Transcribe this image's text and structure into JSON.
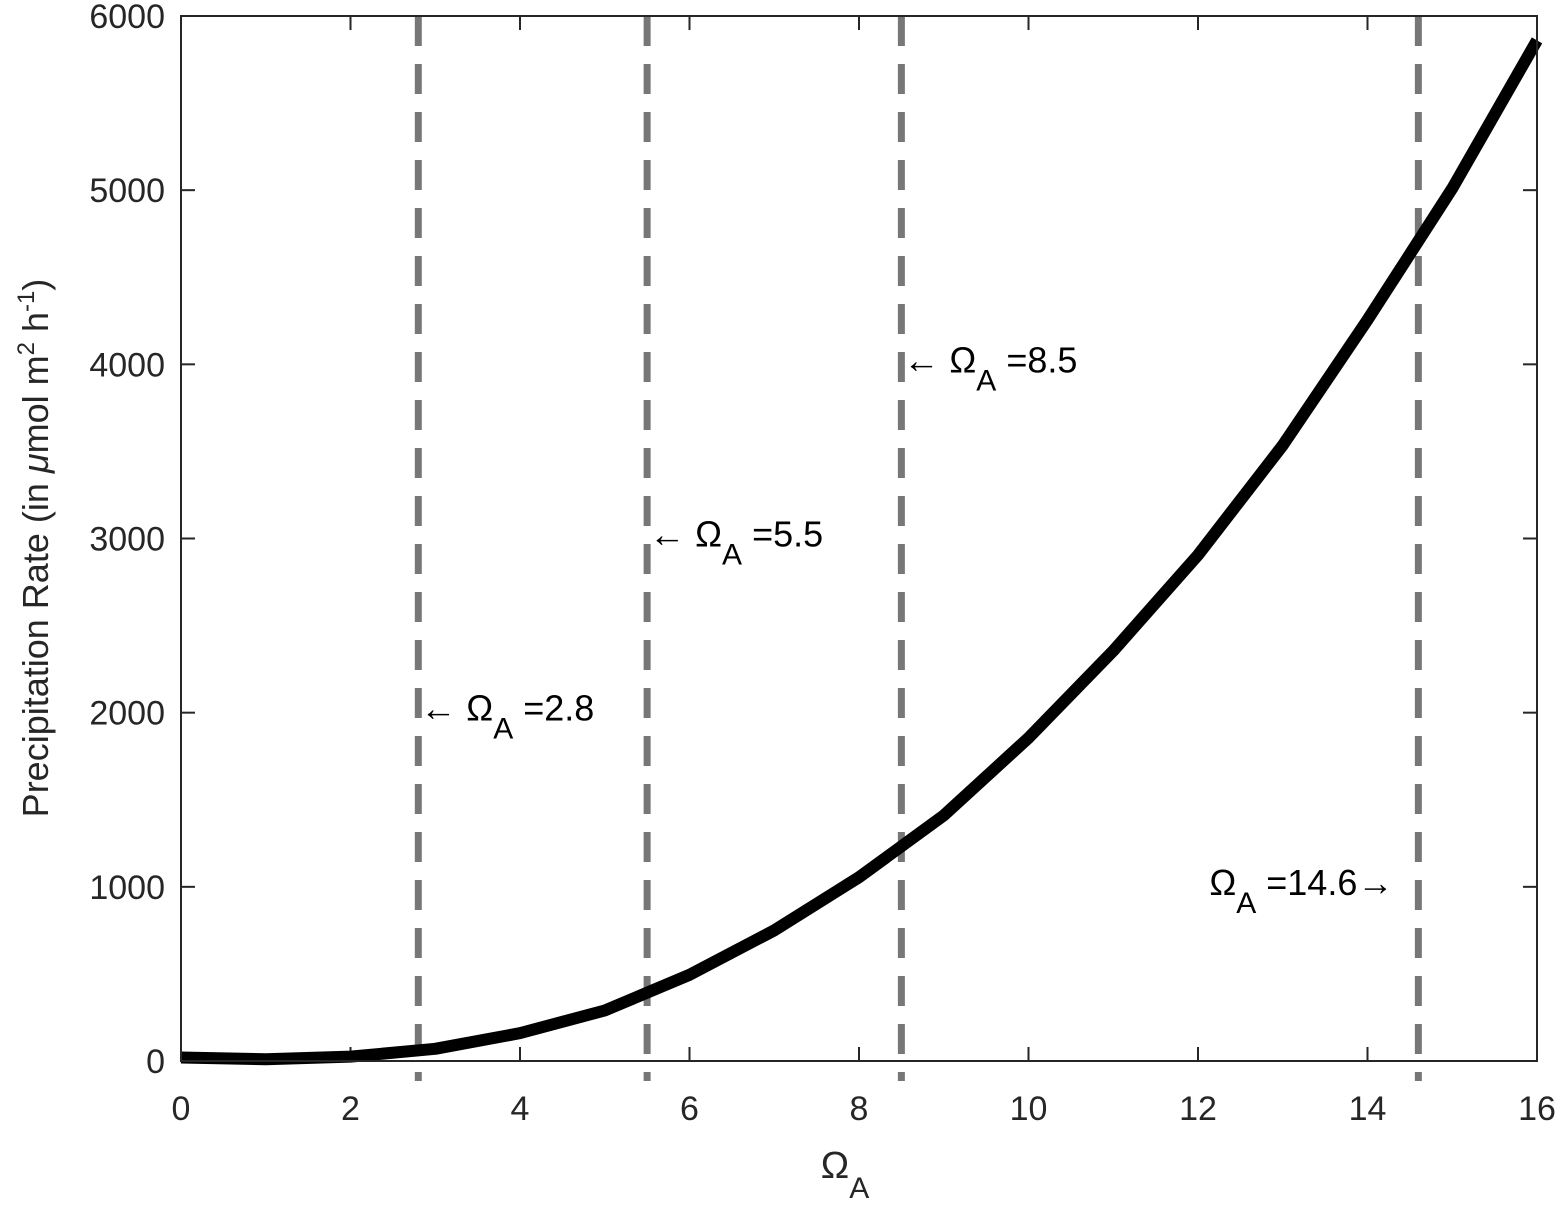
{
  "chart_data": {
    "type": "line",
    "xlabel": [
      "Ω",
      "A"
    ],
    "ylabel": [
      "Precipitation Rate (in ",
      "μ",
      "mol m",
      "2",
      " h",
      "-1",
      ")"
    ],
    "x": [
      0,
      1,
      2,
      3,
      4,
      5,
      6,
      7,
      8,
      9,
      10,
      11,
      12,
      13,
      14,
      15,
      16
    ],
    "y": [
      20,
      10,
      25,
      70,
      160,
      290,
      495,
      750,
      1055,
      1410,
      1855,
      2355,
      2905,
      3535,
      4255,
      5010,
      5860
    ],
    "color": "#000000",
    "xlim": [
      0,
      16
    ],
    "xticks": [
      0,
      2,
      4,
      6,
      8,
      10,
      12,
      14,
      16
    ],
    "ylim": [
      0,
      6000
    ],
    "yticks": [
      0,
      1000,
      2000,
      3000,
      4000,
      5000,
      6000
    ],
    "vlines": [
      2.8,
      5.5,
      8.5,
      14.6
    ],
    "vline_color": "#777777",
    "annotations": [
      {
        "x": 2.8,
        "y": 2000,
        "text": "← Ω",
        "sub": "A",
        "rest": " =2.8"
      },
      {
        "x": 5.5,
        "y": 3000,
        "text": "← Ω",
        "sub": "A",
        "rest": " =5.5"
      },
      {
        "x": 8.5,
        "y": 4000,
        "text": "← Ω",
        "sub": "A",
        "rest": " =8.5"
      },
      {
        "x": 14.6,
        "y": 1000,
        "text": "Ω",
        "sub": "A",
        "rest": " =14.6→"
      }
    ]
  }
}
